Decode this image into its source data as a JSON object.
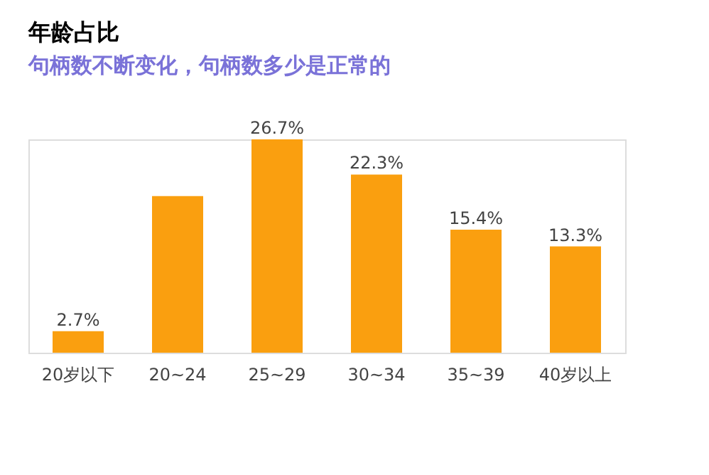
{
  "chart_data": {
    "type": "bar",
    "title": "年龄占比",
    "annotations": [
      "句柄数不断变化，句柄数多少是正常的"
    ],
    "categories": [
      "20岁以下",
      "20~24",
      "25~29",
      "30~34",
      "35~39",
      "40岁以上"
    ],
    "values": [
      2.7,
      19.6,
      26.7,
      22.3,
      15.4,
      13.3
    ],
    "value_labels": [
      "2.7%",
      null,
      "26.7%",
      "22.3%",
      "15.4%",
      "13.3%"
    ],
    "color": "#fa9f0f",
    "grid": false,
    "tick_labels": "x"
  }
}
